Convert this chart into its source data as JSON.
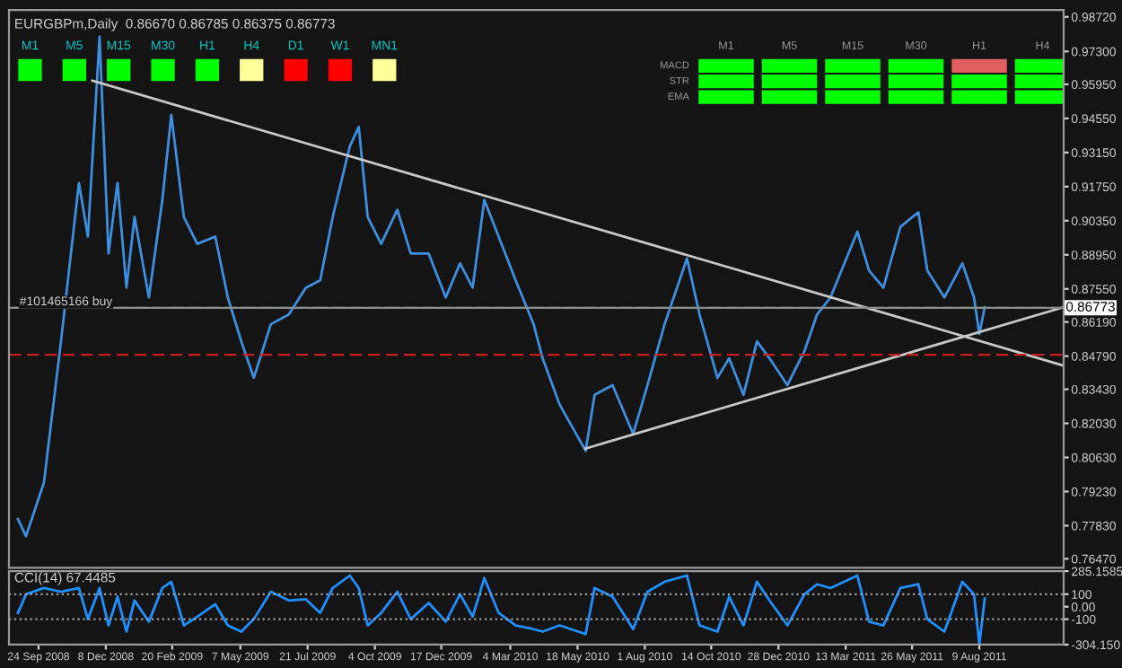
{
  "chart_data": [
    {
      "type": "line",
      "title": "EURGBPm,Daily  0.86670 0.86785 0.86375 0.86773",
      "x": [
        "2008-09-01",
        "2008-09-10",
        "2008-09-30",
        "2008-10-19",
        "2008-11-08",
        "2008-11-18",
        "2008-12-01",
        "2008-12-11",
        "2008-12-21",
        "2008-12-31",
        "2009-01-09",
        "2009-01-25",
        "2009-02-09",
        "2009-02-19",
        "2009-03-05",
        "2009-03-20",
        "2009-04-09",
        "2009-04-23",
        "2009-05-08",
        "2009-05-22",
        "2009-06-10",
        "2009-06-30",
        "2009-07-19",
        "2009-08-04",
        "2009-08-18",
        "2009-09-06",
        "2009-09-16",
        "2009-09-26",
        "2009-10-11",
        "2009-10-29",
        "2009-11-13",
        "2009-12-03",
        "2009-12-22",
        "2010-01-07",
        "2010-01-21",
        "2010-02-03",
        "2010-02-19",
        "2010-03-10",
        "2010-03-30",
        "2010-04-09",
        "2010-04-28",
        "2010-05-27",
        "2010-06-06",
        "2010-06-26",
        "2010-07-19",
        "2010-08-04",
        "2010-08-23",
        "2010-09-17",
        "2010-10-01",
        "2010-10-21",
        "2010-11-03",
        "2010-11-19",
        "2010-12-04",
        "2010-12-18",
        "2011-01-07",
        "2011-01-26",
        "2011-02-09",
        "2011-02-24",
        "2011-03-26",
        "2011-04-08",
        "2011-04-24",
        "2011-05-13",
        "2011-06-02",
        "2011-06-12",
        "2011-07-01",
        "2011-07-21",
        "2011-08-03",
        "2011-08-09",
        "2011-08-15"
      ],
      "series": [
        {
          "color": "#3d8fe0",
          "values": [
            0.781,
            0.774,
            0.796,
            0.854,
            0.919,
            0.897,
            0.979,
            0.89,
            0.919,
            0.876,
            0.905,
            0.872,
            0.912,
            0.947,
            0.905,
            0.894,
            0.897,
            0.872,
            0.854,
            0.839,
            0.861,
            0.865,
            0.876,
            0.879,
            0.905,
            0.934,
            0.942,
            0.905,
            0.894,
            0.908,
            0.89,
            0.89,
            0.872,
            0.886,
            0.876,
            0.912,
            0.897,
            0.879,
            0.861,
            0.847,
            0.828,
            0.809,
            0.832,
            0.836,
            0.816,
            0.836,
            0.861,
            0.888,
            0.865,
            0.839,
            0.847,
            0.832,
            0.854,
            0.847,
            0.836,
            0.85,
            0.865,
            0.872,
            0.899,
            0.883,
            0.876,
            0.901,
            0.907,
            0.883,
            0.872,
            0.886,
            0.872,
            0.857,
            0.868
          ]
        },
        {
          "color": "#c8c8c8",
          "x": [
            "2008-11-23",
            "2011-11-11"
          ],
          "values": [
            0.961,
            0.844
          ]
        },
        {
          "color": "#c8c8c8",
          "x": [
            "2010-05-27",
            "2011-11-11"
          ],
          "values": [
            0.81,
            0.868
          ]
        }
      ],
      "xlim": [
        "2008-08-22",
        "2011-11-11"
      ],
      "ylim": [
        0.761,
        0.99
      ],
      "yticks": [
        {
          "value": 0.9872,
          "label": "0.98720"
        },
        {
          "value": 0.973,
          "label": "0.97300"
        },
        {
          "value": 0.9595,
          "label": "0.95950"
        },
        {
          "value": 0.9455,
          "label": "0.94550"
        },
        {
          "value": 0.9315,
          "label": "0.93150"
        },
        {
          "value": 0.9175,
          "label": "0.91750"
        },
        {
          "value": 0.9035,
          "label": "0.90350"
        },
        {
          "value": 0.8895,
          "label": "0.88950"
        },
        {
          "value": 0.8755,
          "label": "0.87550"
        },
        {
          "value": 0.8619,
          "label": "0.86190"
        },
        {
          "value": 0.8479,
          "label": "0.84790"
        },
        {
          "value": 0.8343,
          "label": "0.83430"
        },
        {
          "value": 0.8203,
          "label": "0.82030"
        },
        {
          "value": 0.8063,
          "label": "0.80630"
        },
        {
          "value": 0.7923,
          "label": "0.79230"
        },
        {
          "value": 0.7783,
          "label": "0.77830"
        },
        {
          "value": 0.7647,
          "label": "0.76470"
        }
      ],
      "ref_lines": [
        {
          "axis": "y",
          "value": 0.8677,
          "label": "#101465166 buy",
          "color": "#2e8b2e",
          "line_style": "dashed"
        },
        {
          "axis": "y",
          "value": 0.8485,
          "color": "#c81e1e",
          "line_style": "dashed"
        },
        {
          "axis": "y",
          "value": 0.86773,
          "label": "0.86773",
          "color": "#8c8c8c",
          "line_style": "solid"
        }
      ],
      "annotations": [
        "M1",
        "M5",
        "M15",
        "M30",
        "H1",
        "H4",
        "D1",
        "W1",
        "MN1",
        "MACD",
        "STR",
        "EMA",
        "M1",
        "M5",
        "M15",
        "M30",
        "H1",
        "H4"
      ],
      "tick_labels": "y",
      "grid": false,
      "legend": false
    },
    {
      "type": "line",
      "title": "CCI(14) 67.4485",
      "x": [
        "2008-09-01",
        "2008-09-10",
        "2008-09-30",
        "2008-10-19",
        "2008-11-08",
        "2008-11-18",
        "2008-12-01",
        "2008-12-11",
        "2008-12-21",
        "2008-12-31",
        "2009-01-09",
        "2009-01-25",
        "2009-02-09",
        "2009-02-19",
        "2009-03-05",
        "2009-03-20",
        "2009-04-09",
        "2009-04-23",
        "2009-05-08",
        "2009-05-22",
        "2009-06-10",
        "2009-06-30",
        "2009-07-19",
        "2009-08-04",
        "2009-08-18",
        "2009-09-06",
        "2009-09-16",
        "2009-09-26",
        "2009-10-11",
        "2009-10-29",
        "2009-11-13",
        "2009-12-03",
        "2009-12-22",
        "2010-01-07",
        "2010-01-21",
        "2010-02-03",
        "2010-02-19",
        "2010-03-10",
        "2010-03-30",
        "2010-04-09",
        "2010-04-28",
        "2010-05-27",
        "2010-06-06",
        "2010-06-26",
        "2010-07-19",
        "2010-08-04",
        "2010-08-23",
        "2010-09-17",
        "2010-10-01",
        "2010-10-21",
        "2010-11-03",
        "2010-11-19",
        "2010-12-04",
        "2010-12-18",
        "2011-01-07",
        "2011-01-26",
        "2011-02-09",
        "2011-02-24",
        "2011-03-26",
        "2011-04-08",
        "2011-04-24",
        "2011-05-13",
        "2011-06-02",
        "2011-06-12",
        "2011-07-01",
        "2011-07-21",
        "2011-08-03",
        "2011-08-09",
        "2011-08-15"
      ],
      "series": [
        {
          "color": "#1e90ff",
          "values": [
            -50,
            100,
            150,
            120,
            150,
            -100,
            150,
            -150,
            80,
            -200,
            50,
            -120,
            150,
            200,
            -150,
            -80,
            20,
            -150,
            -200,
            -100,
            120,
            50,
            60,
            -50,
            150,
            250,
            150,
            -150,
            -50,
            120,
            -100,
            30,
            -120,
            100,
            -80,
            230,
            -50,
            -150,
            -180,
            -200,
            -150,
            -220,
            150,
            80,
            -180,
            120,
            200,
            250,
            -150,
            -200,
            80,
            -150,
            200,
            50,
            -150,
            100,
            180,
            150,
            250,
            -120,
            -150,
            150,
            180,
            -100,
            -200,
            200,
            100,
            -300,
            67
          ]
        }
      ],
      "xlim": [
        "2008-08-22",
        "2011-11-11"
      ],
      "xticks": [
        {
          "value": "2008-09-24",
          "label": "24 Sep 2008"
        },
        {
          "value": "2008-12-08",
          "label": "8 Dec 2008"
        },
        {
          "value": "2009-02-20",
          "label": "20 Feb 2009"
        },
        {
          "value": "2009-05-07",
          "label": "7 May 2009"
        },
        {
          "value": "2009-07-21",
          "label": "21 Jul 2009"
        },
        {
          "value": "2009-10-04",
          "label": "4 Oct 2009"
        },
        {
          "value": "2009-12-17",
          "label": "17 Dec 2009"
        },
        {
          "value": "2010-03-04",
          "label": "4 Mar 2010"
        },
        {
          "value": "2010-05-18",
          "label": "18 May 2010"
        },
        {
          "value": "2010-08-01",
          "label": "1 Aug 2010"
        },
        {
          "value": "2010-10-14",
          "label": "14 Oct 2010"
        },
        {
          "value": "2010-12-28",
          "label": "28 Dec 2010"
        },
        {
          "value": "2011-03-13",
          "label": "13 Mar 2011"
        },
        {
          "value": "2011-05-26",
          "label": "26 May 2011"
        },
        {
          "value": "2011-08-09",
          "label": "9 Aug 2011"
        }
      ],
      "ylim": [
        -304.15,
        285.1585
      ],
      "yticks": [
        {
          "value": 285.1585,
          "label": "285.1585"
        },
        100,
        {
          "value": 0,
          "label": "0.00"
        },
        -100,
        {
          "value": -304.15,
          "label": "-304.150"
        }
      ],
      "ref_lines": [
        {
          "axis": "y",
          "value": 100,
          "color": "#a0a0a0",
          "line_style": "dotted"
        },
        {
          "axis": "y",
          "value": -100,
          "color": "#a0a0a0",
          "line_style": "dotted"
        }
      ],
      "grid": false,
      "legend": false
    }
  ]
}
